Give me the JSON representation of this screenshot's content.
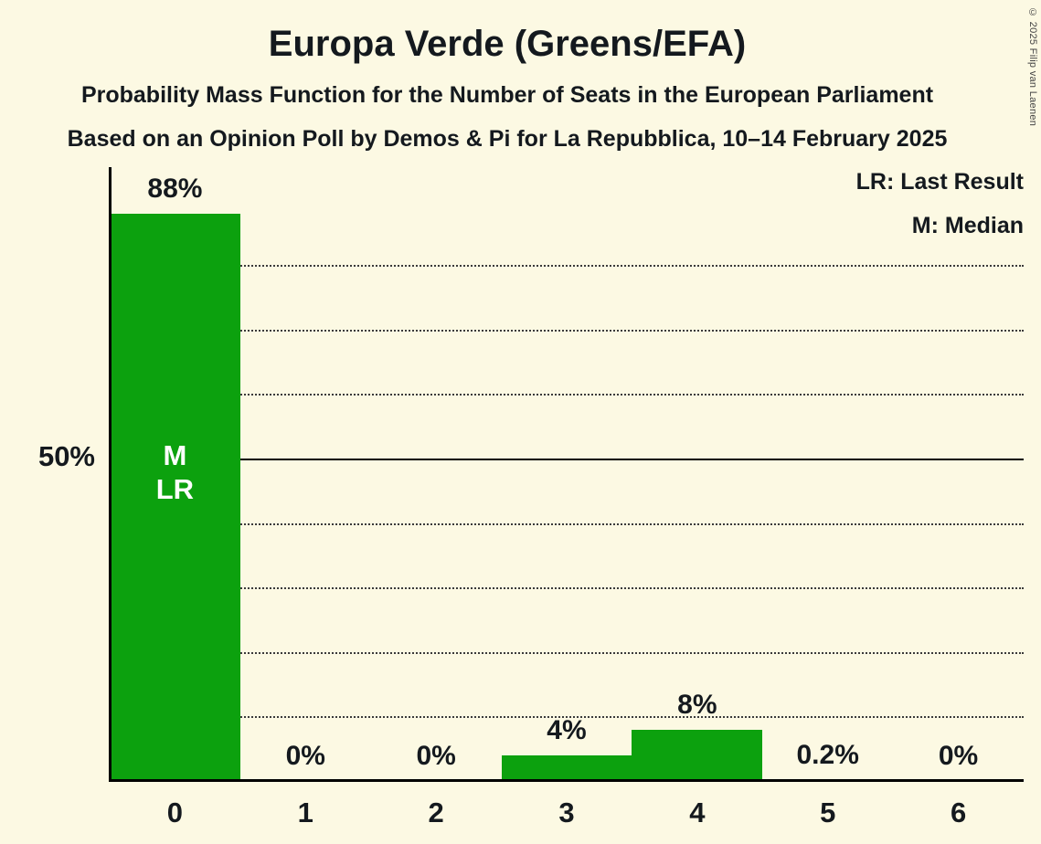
{
  "title": "Europa Verde (Greens/EFA)",
  "subtitle1": "Probability Mass Function for the Number of Seats in the European Parliament",
  "subtitle2": "Based on an Opinion Poll by Demos & Pi for La Repubblica, 10–14 February 2025",
  "legend": {
    "last_result": "LR: Last Result",
    "median": "M: Median"
  },
  "y_axis": {
    "label_50": "50%"
  },
  "copyright": "© 2025 Filip van Laenen",
  "colors": {
    "background": "#FCF9E3",
    "bar": "#0CA10E",
    "text": "#14191E",
    "bar_label": "#FFFFFF"
  },
  "chart_data": {
    "type": "bar",
    "title": "Europa Verde (Greens/EFA) — Probability Mass Function for the Number of Seats in the European Parliament",
    "categories": [
      "0",
      "1",
      "2",
      "3",
      "4",
      "5",
      "6"
    ],
    "values": [
      88,
      0,
      0,
      4,
      8,
      0.2,
      0
    ],
    "value_labels": [
      "88%",
      "0%",
      "0%",
      "4%",
      "8%",
      "0.2%",
      "0%"
    ],
    "ylim": [
      0,
      100
    ],
    "gridlines_percent": [
      10,
      20,
      30,
      40,
      50,
      60,
      70,
      80
    ],
    "solid_gridline_percent": 50,
    "grid": "dotted horizontal",
    "legend_position": "top-right",
    "median_seat": "0",
    "last_result_seat": "0",
    "bar_annotations": [
      {
        "category": "0",
        "lines": [
          "M",
          "LR"
        ]
      }
    ]
  }
}
